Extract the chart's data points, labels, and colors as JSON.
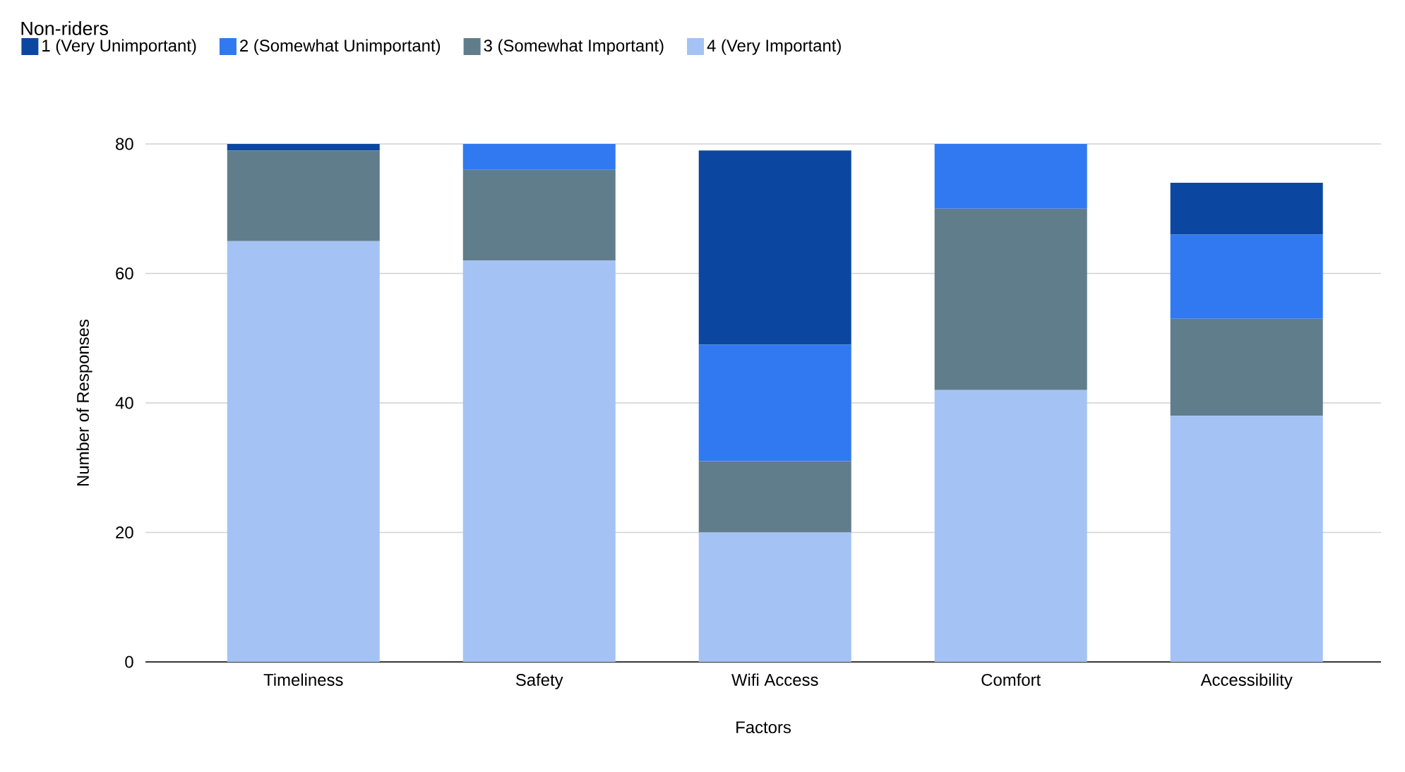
{
  "chart_data": {
    "type": "bar",
    "title": "Non-riders",
    "xlabel": "Factors",
    "ylabel": "Number of Responses",
    "categories": [
      "Timeliness",
      "Safety",
      "Wifi Access",
      "Comfort",
      "Accessibility"
    ],
    "stacked": true,
    "series": [
      {
        "name": "4 (Very Important)",
        "color": "#a4c2f4",
        "values": [
          65,
          62,
          20,
          42,
          38
        ]
      },
      {
        "name": "3 (Somewhat Important)",
        "color": "#607d8b",
        "values": [
          14,
          14,
          11,
          28,
          15
        ]
      },
      {
        "name": "2 (Somewhat Unimportant)",
        "color": "#3079f0",
        "values": [
          0,
          4,
          18,
          10,
          13
        ]
      },
      {
        "name": "1 (Very Unimportant)",
        "color": "#0b47a1",
        "values": [
          1,
          0,
          30,
          0,
          8
        ]
      }
    ],
    "ylim": [
      0,
      80
    ],
    "yticks": [
      0,
      20,
      40,
      60,
      80
    ],
    "grid": "y",
    "legend": "top left"
  }
}
